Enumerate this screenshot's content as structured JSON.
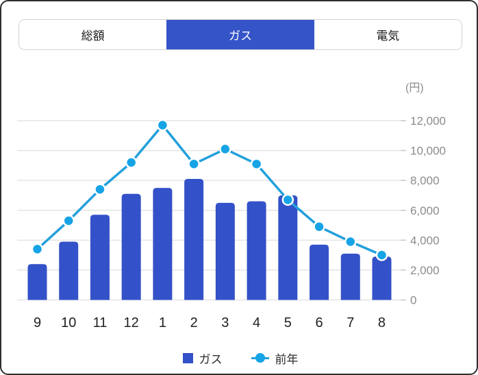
{
  "tabs": [
    {
      "label": "総額",
      "active": false
    },
    {
      "label": "ガス",
      "active": true
    },
    {
      "label": "電気",
      "active": false
    }
  ],
  "legend": {
    "bar_label": "ガス",
    "line_label": "前年"
  },
  "colors": {
    "tab_active_bg": "#3554c8",
    "bar": "#3351c8",
    "line": "#22a0db",
    "marker_fill": "#16a4e6",
    "marker_stroke": "#ffffff",
    "grid": "#e4e4e4",
    "tick_stub": "#c9c9c9",
    "y_label": "#8b8b8b",
    "x_label": "#202020",
    "widget_border": "#2e2e2e"
  },
  "chart_data": {
    "type": "bar",
    "subtype": "bar+line combo",
    "title": "",
    "unit_label": "(円)",
    "categories": [
      "9",
      "10",
      "11",
      "12",
      "1",
      "2",
      "3",
      "4",
      "5",
      "6",
      "7",
      "8"
    ],
    "series": [
      {
        "name": "ガス",
        "type": "bar",
        "values": [
          2400,
          3900,
          5700,
          7100,
          7500,
          8100,
          6500,
          6600,
          7000,
          3700,
          3100,
          2900
        ]
      },
      {
        "name": "前年",
        "type": "line",
        "values": [
          3400,
          5300,
          7400,
          9200,
          11700,
          9100,
          10100,
          9100,
          6700,
          4900,
          3900,
          3000
        ]
      }
    ],
    "ylim": [
      0,
      12000
    ],
    "y_tick_values": [
      0,
      2000,
      4000,
      6000,
      8000,
      10000,
      12000
    ],
    "y_tick_labels": [
      "0",
      "2,000",
      "4,000",
      "6,000",
      "8,000",
      "10,000",
      "12,000"
    ],
    "y_axis_side": "right",
    "grid": "horizontal",
    "legend_position": "bottom"
  }
}
